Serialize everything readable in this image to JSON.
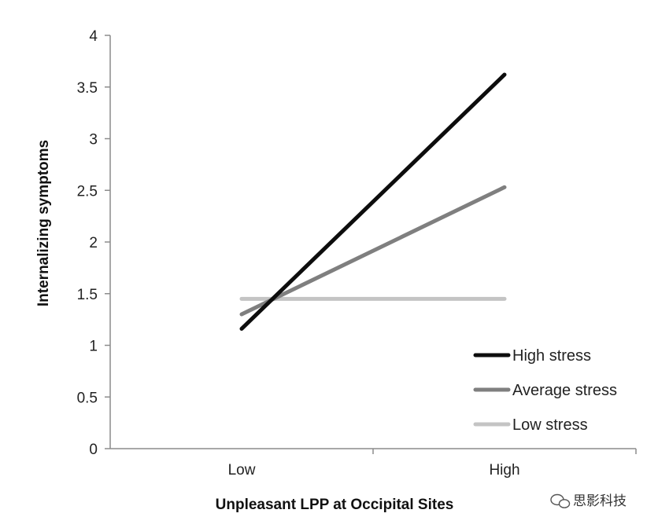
{
  "chart_data": {
    "type": "line",
    "title": "",
    "xlabel": "Unpleasant LPP at Occipital Sites",
    "ylabel": "Internalizing symptoms",
    "categories": [
      "Low",
      "High"
    ],
    "ylim": [
      0,
      4
    ],
    "yticks": [
      "0",
      "0.5",
      "1",
      "1.5",
      "2",
      "2.5",
      "3",
      "3.5",
      "4"
    ],
    "grid": false,
    "legend_position": "bottom-right",
    "series": [
      {
        "name": "High stress",
        "values": [
          1.16,
          3.62
        ],
        "color": "#0d0d0d"
      },
      {
        "name": "Average stress",
        "values": [
          1.3,
          2.53
        ],
        "color": "#7f7f7f"
      },
      {
        "name": "Low stress",
        "values": [
          1.45,
          1.45
        ],
        "color": "#c4c4c4"
      }
    ]
  },
  "watermark": {
    "text": "思影科技",
    "icon": "wechat-icon"
  }
}
